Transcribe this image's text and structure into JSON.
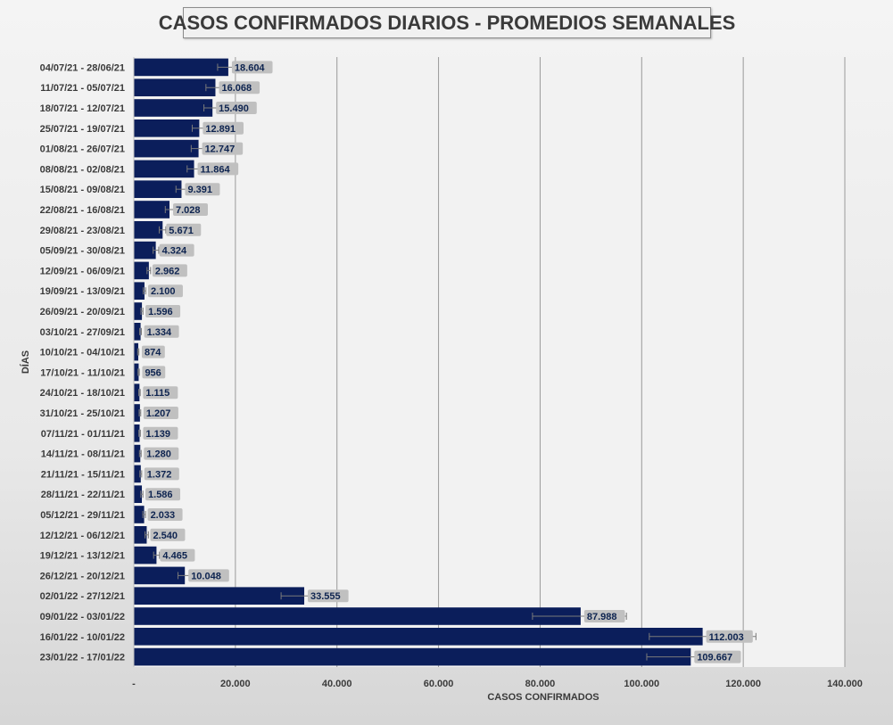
{
  "chart_data": {
    "type": "bar",
    "orientation": "horizontal",
    "title": "CASOS CONFIRMADOS DIARIOS - PROMEDIOS SEMANALES",
    "xlabel": "CASOS CONFIRMADOS",
    "ylabel": "DÍAS",
    "xlim": [
      0,
      140000
    ],
    "x_ticks": [
      0,
      20000,
      40000,
      60000,
      80000,
      100000,
      120000,
      140000
    ],
    "x_tick_labels": [
      "-",
      "20.000",
      "40.000",
      "60.000",
      "80.000",
      "100.000",
      "120.000",
      "140.000"
    ],
    "grid": "vertical major",
    "bar_color": "#0b1e5b",
    "label_bg_color": "#c0c0c0",
    "categories": [
      "04/07/21 - 28/06/21",
      "11/07/21 - 05/07/21",
      "18/07/21 - 12/07/21",
      "25/07/21 - 19/07/21",
      "01/08/21 - 26/07/21",
      "08/08/21 - 02/08/21",
      "15/08/21 - 09/08/21",
      "22/08/21 - 16/08/21",
      "29/08/21 - 23/08/21",
      "05/09/21 - 30/08/21",
      "12/09/21 - 06/09/21",
      "19/09/21 - 13/09/21",
      "26/09/21 - 20/09/21",
      "03/10/21 - 27/09/21",
      "10/10/21 - 04/10/21",
      "17/10/21 - 11/10/21",
      "24/10/21 - 18/10/21",
      "31/10/21 - 25/10/21",
      "07/11/21 - 01/11/21",
      "14/11/21 - 08/11/21",
      "21/11/21 - 15/11/21",
      "28/11/21 - 22/11/21",
      "05/12/21 - 29/11/21",
      "12/12/21 - 06/12/21",
      "19/12/21 - 13/12/21",
      "26/12/21 - 20/12/21",
      "02/01/22 - 27/12/21",
      "09/01/22 - 03/01/22",
      "16/01/22 - 10/01/22",
      "23/01/22 - 17/01/22"
    ],
    "values": [
      18604,
      16068,
      15490,
      12891,
      12747,
      11864,
      9391,
      7028,
      5671,
      4324,
      2962,
      2100,
      1596,
      1334,
      874,
      956,
      1115,
      1207,
      1139,
      1280,
      1372,
      1586,
      2033,
      2540,
      4465,
      10048,
      33555,
      87988,
      112003,
      109667
    ],
    "value_labels": [
      "18.604",
      "16.068",
      "15.490",
      "12.891",
      "12.747",
      "11.864",
      "9.391",
      "7.028",
      "5.671",
      "4.324",
      "2.962",
      "2.100",
      "1.596",
      "1.334",
      "874",
      "956",
      "1.115",
      "1.207",
      "1.139",
      "1.280",
      "1.372",
      "1.586",
      "2.033",
      "2.540",
      "4.465",
      "10.048",
      "33.555",
      "87.988",
      "112.003",
      "109.667"
    ],
    "error_bars": [
      [
        16500,
        20500
      ],
      [
        14200,
        17800
      ],
      [
        13800,
        17000
      ],
      [
        11500,
        14300
      ],
      [
        11300,
        14100
      ],
      [
        10500,
        13200
      ],
      [
        8300,
        10500
      ],
      [
        6200,
        7900
      ],
      [
        5000,
        6300
      ],
      [
        3800,
        4900
      ],
      [
        2600,
        3300
      ],
      [
        1850,
        2350
      ],
      [
        1400,
        1800
      ],
      [
        1150,
        1500
      ],
      [
        760,
        990
      ],
      [
        830,
        1080
      ],
      [
        970,
        1260
      ],
      [
        1050,
        1360
      ],
      [
        990,
        1290
      ],
      [
        1110,
        1450
      ],
      [
        1190,
        1550
      ],
      [
        1380,
        1790
      ],
      [
        1770,
        2300
      ],
      [
        2210,
        2870
      ],
      [
        3900,
        5050
      ],
      [
        8700,
        11400
      ],
      [
        29000,
        38000
      ],
      [
        78500,
        97000
      ],
      [
        101500,
        122500
      ],
      [
        101000,
        118000
      ]
    ]
  }
}
